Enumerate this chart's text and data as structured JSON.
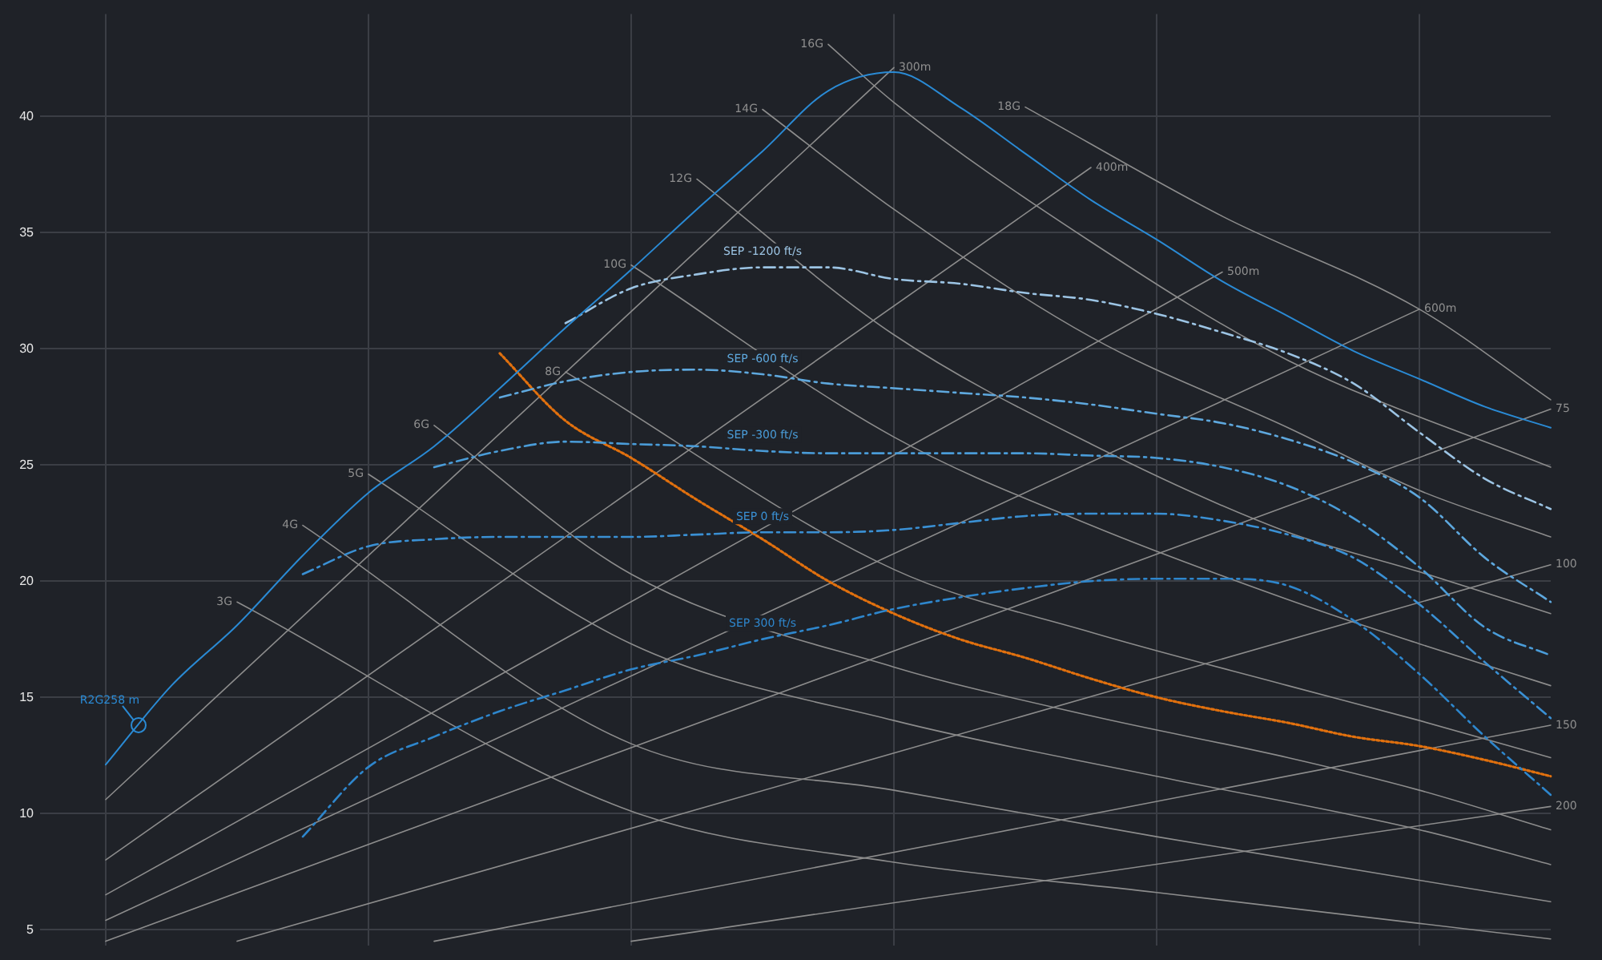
{
  "chart_data": {
    "type": "line",
    "categories": [
      null,
      null,
      null,
      null,
      null,
      null,
      null,
      null,
      null,
      null,
      null,
      null,
      null,
      null,
      null,
      null,
      null,
      null,
      null,
      null,
      null,
      null,
      null,
      null
    ],
    "ylim": [
      4.3,
      44.4
    ],
    "yticks": [
      5,
      10,
      15,
      20,
      25,
      30,
      35,
      40
    ],
    "grid": true,
    "legend": false,
    "marker": "none",
    "tick_labels": "y",
    "annotations": [
      "R2G258 m"
    ],
    "series": [
      {
        "color": "#2a8ad4",
        "line_style": "solid",
        "values": [
          null,
          12.1,
          15.5,
          18.1,
          21.1,
          23.8,
          25.8,
          28.3,
          30.9,
          33.4,
          36.0,
          38.5,
          41.1,
          41.9,
          40.4,
          38.4,
          36.4,
          34.7,
          32.9,
          31.4,
          29.9,
          28.7,
          27.5,
          26.6
        ]
      },
      {
        "name": "SEP -1200 ft/s",
        "color": "#9cc4e4",
        "line_style": "dashed",
        "values": [
          null,
          null,
          null,
          null,
          null,
          null,
          null,
          null,
          31.1,
          32.6,
          33.2,
          33.5,
          33.5,
          33.0,
          32.8,
          32.4,
          32.1,
          31.5,
          30.7,
          29.8,
          28.5,
          26.4,
          24.4,
          23.1
        ]
      },
      {
        "name": "SEP -600 ft/s",
        "color": "#5ea8de",
        "line_style": "dashed",
        "values": [
          null,
          null,
          null,
          null,
          null,
          null,
          null,
          27.9,
          28.6,
          29.0,
          29.1,
          28.9,
          28.5,
          28.3,
          28.1,
          27.9,
          27.6,
          27.2,
          26.8,
          26.1,
          25.1,
          23.6,
          21.0,
          19.1
        ]
      },
      {
        "name": "SEP -300 ft/s",
        "color": "#4a9cd8",
        "line_style": "dashed",
        "values": [
          null,
          null,
          null,
          null,
          null,
          null,
          24.9,
          25.6,
          26.0,
          25.9,
          25.8,
          25.6,
          25.5,
          25.5,
          25.5,
          25.5,
          25.4,
          25.3,
          24.9,
          24.1,
          22.7,
          20.6,
          18.0,
          16.8
        ]
      },
      {
        "name": "SEP 0 ft/s",
        "color": "#3a90d4",
        "line_style": "dashed",
        "values": [
          null,
          null,
          null,
          null,
          20.3,
          21.5,
          21.8,
          21.9,
          21.9,
          21.9,
          22.0,
          22.1,
          22.1,
          22.2,
          22.5,
          22.8,
          22.9,
          22.9,
          22.6,
          22.0,
          21.0,
          19.0,
          16.5,
          14.1
        ]
      },
      {
        "name": "SEP 300 ft/s",
        "color": "#2e86cc",
        "line_style": "dashed",
        "values": [
          null,
          null,
          null,
          null,
          9.0,
          12.0,
          13.3,
          14.4,
          15.3,
          16.2,
          16.8,
          17.5,
          18.1,
          18.8,
          19.3,
          19.7,
          20.0,
          20.1,
          20.1,
          19.8,
          18.3,
          16.0,
          13.3,
          10.8
        ]
      },
      {
        "color": "#e0700e",
        "line_style": "dotted",
        "values": [
          null,
          null,
          null,
          null,
          null,
          null,
          null,
          29.8,
          26.9,
          25.3,
          23.5,
          21.8,
          20.0,
          18.6,
          17.5,
          16.7,
          15.8,
          15.0,
          14.4,
          13.9,
          13.3,
          12.9,
          12.3,
          11.6
        ]
      },
      {
        "name": "3G",
        "color": "#8c8c8c",
        "line_style": "solid",
        "values": [
          null,
          null,
          null,
          19.1,
          null,
          null,
          null,
          null,
          null,
          10.1,
          null,
          null,
          null,
          7.9,
          null,
          null,
          null,
          6.6,
          null,
          null,
          null,
          null,
          null,
          4.6
        ]
      },
      {
        "name": "4G",
        "color": "#8c8c8c",
        "line_style": "solid",
        "values": [
          null,
          null,
          null,
          null,
          22.4,
          null,
          null,
          null,
          null,
          13.0,
          null,
          null,
          null,
          11.0,
          null,
          null,
          null,
          9.0,
          null,
          null,
          null,
          null,
          null,
          6.2
        ]
      },
      {
        "name": "5G",
        "color": "#8c8c8c",
        "line_style": "solid",
        "values": [
          null,
          null,
          null,
          null,
          null,
          24.6,
          null,
          null,
          null,
          17.3,
          null,
          null,
          null,
          14.0,
          null,
          null,
          null,
          11.6,
          null,
          null,
          null,
          9.3,
          null,
          7.8
        ]
      },
      {
        "name": "6G",
        "color": "#8c8c8c",
        "line_style": "solid",
        "values": [
          null,
          null,
          null,
          null,
          null,
          null,
          26.7,
          null,
          null,
          20.3,
          null,
          null,
          null,
          16.3,
          null,
          null,
          14.2,
          null,
          null,
          12.4,
          null,
          11.0,
          null,
          9.3
        ]
      },
      {
        "name": "8G",
        "color": "#8c8c8c",
        "line_style": "solid",
        "values": [
          null,
          null,
          null,
          null,
          null,
          null,
          null,
          null,
          29.0,
          null,
          null,
          null,
          null,
          20.5,
          null,
          null,
          17.8,
          null,
          null,
          15.5,
          null,
          14.0,
          null,
          12.4
        ]
      },
      {
        "name": "10G",
        "color": "#8c8c8c",
        "line_style": "solid",
        "values": [
          null,
          null,
          null,
          null,
          null,
          null,
          null,
          null,
          null,
          33.6,
          null,
          null,
          null,
          26.2,
          null,
          null,
          22.4,
          null,
          null,
          19.2,
          null,
          17.3,
          null,
          15.5
        ]
      },
      {
        "name": "12G",
        "color": "#8c8c8c",
        "line_style": "solid",
        "values": [
          null,
          null,
          null,
          null,
          null,
          null,
          null,
          null,
          null,
          null,
          37.3,
          null,
          null,
          30.6,
          null,
          null,
          25.9,
          null,
          null,
          22.1,
          null,
          20.4,
          null,
          18.6
        ]
      },
      {
        "name": "14G",
        "color": "#8c8c8c",
        "line_style": "solid",
        "values": [
          null,
          null,
          null,
          null,
          null,
          null,
          null,
          null,
          null,
          null,
          null,
          40.3,
          null,
          36.0,
          null,
          null,
          30.5,
          null,
          null,
          26.6,
          null,
          23.9,
          null,
          21.9
        ]
      },
      {
        "name": "16G",
        "color": "#8c8c8c",
        "line_style": "solid",
        "values": [
          null,
          null,
          null,
          null,
          null,
          null,
          null,
          null,
          null,
          null,
          null,
          null,
          43.1,
          40.6,
          null,
          null,
          34.6,
          null,
          null,
          29.5,
          null,
          null,
          null,
          24.9
        ]
      },
      {
        "name": "18G",
        "color": "#8c8c8c",
        "line_style": "solid",
        "values": [
          null,
          null,
          null,
          null,
          null,
          null,
          null,
          null,
          null,
          null,
          null,
          null,
          null,
          null,
          null,
          40.4,
          null,
          null,
          35.7,
          null,
          null,
          31.7,
          null,
          27.8
        ]
      },
      {
        "name": "300m",
        "color": "#8c8c8c",
        "line_style": "solid",
        "values": [
          null,
          10.6,
          null,
          null,
          null,
          null,
          null,
          null,
          null,
          null,
          null,
          null,
          null,
          42.1,
          null,
          null,
          null,
          null,
          null,
          null,
          null,
          null,
          null,
          null
        ]
      },
      {
        "name": "400m",
        "color": "#8c8c8c",
        "line_style": "solid",
        "values": [
          null,
          8.0,
          null,
          null,
          null,
          null,
          null,
          null,
          null,
          null,
          null,
          null,
          null,
          null,
          null,
          null,
          37.8,
          null,
          null,
          null,
          null,
          null,
          null,
          null
        ]
      },
      {
        "name": "500m",
        "color": "#8c8c8c",
        "line_style": "solid",
        "values": [
          null,
          6.5,
          null,
          null,
          null,
          null,
          null,
          null,
          null,
          null,
          null,
          null,
          null,
          null,
          null,
          null,
          null,
          null,
          33.3,
          null,
          null,
          null,
          null,
          null
        ]
      },
      {
        "name": "600m",
        "color": "#8c8c8c",
        "line_style": "solid",
        "values": [
          null,
          5.4,
          null,
          null,
          null,
          null,
          null,
          null,
          null,
          null,
          null,
          null,
          null,
          null,
          null,
          null,
          null,
          null,
          null,
          null,
          null,
          31.7,
          null,
          null
        ]
      },
      {
        "name": "75",
        "color": "#8c8c8c",
        "line_style": "solid",
        "values": [
          null,
          4.5,
          null,
          null,
          null,
          null,
          null,
          null,
          null,
          null,
          null,
          null,
          null,
          null,
          null,
          null,
          null,
          null,
          null,
          null,
          null,
          null,
          null,
          27.4
        ]
      },
      {
        "name": "100",
        "color": "#8c8c8c",
        "line_style": "solid",
        "values": [
          null,
          null,
          null,
          4.5,
          null,
          null,
          null,
          null,
          null,
          null,
          null,
          null,
          null,
          null,
          null,
          null,
          null,
          null,
          null,
          null,
          null,
          null,
          null,
          20.7
        ]
      },
      {
        "name": "150",
        "color": "#8c8c8c",
        "line_style": "solid",
        "values": [
          null,
          null,
          null,
          null,
          null,
          null,
          4.5,
          null,
          null,
          null,
          null,
          null,
          null,
          null,
          null,
          null,
          null,
          null,
          null,
          null,
          null,
          null,
          null,
          13.8
        ]
      },
      {
        "name": "200",
        "color": "#8c8c8c",
        "line_style": "solid",
        "values": [
          null,
          null,
          null,
          null,
          null,
          null,
          null,
          null,
          null,
          4.5,
          null,
          null,
          null,
          null,
          null,
          null,
          null,
          null,
          null,
          null,
          null,
          null,
          null,
          10.3
        ]
      }
    ]
  }
}
